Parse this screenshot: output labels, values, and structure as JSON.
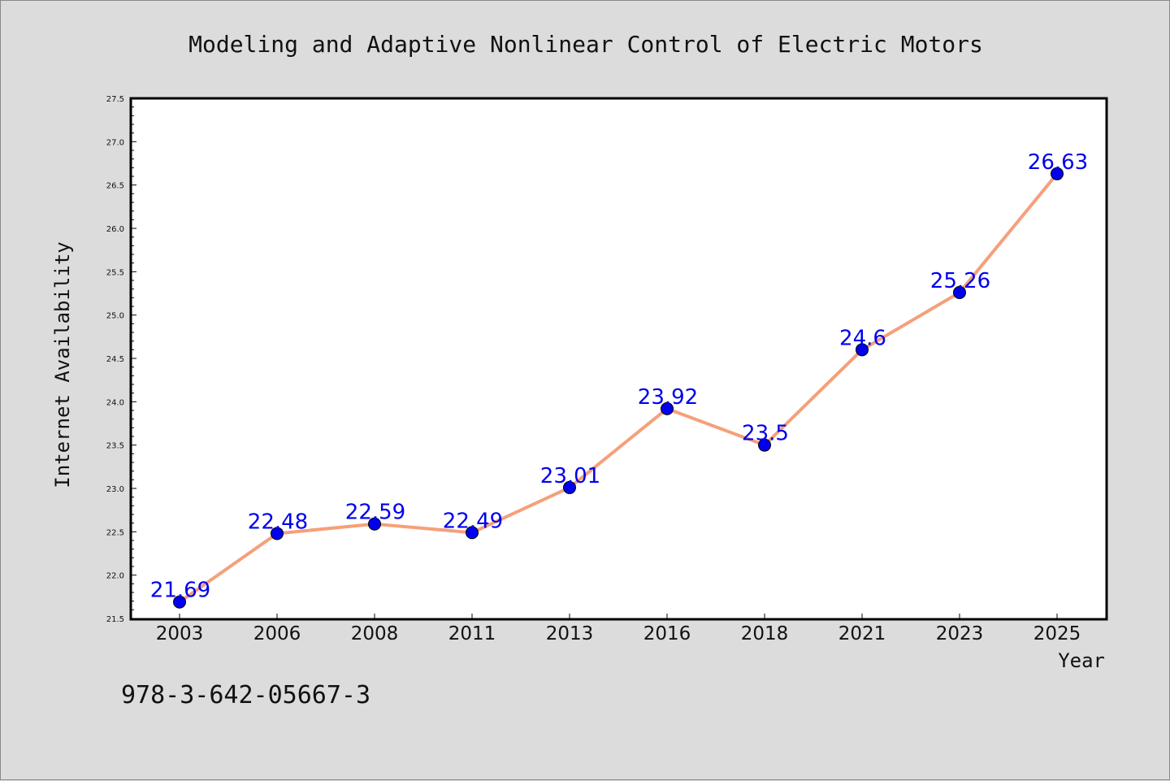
{
  "chart_data": {
    "type": "line",
    "title": "Modeling and Adaptive Nonlinear Control of Electric Motors",
    "xlabel": "Year",
    "ylabel": "Internet Availability",
    "categories": [
      "2003",
      "2006",
      "2008",
      "2011",
      "2013",
      "2016",
      "2018",
      "2021",
      "2023",
      "2025"
    ],
    "series": [
      {
        "values": [
          21.69,
          22.48,
          22.59,
          22.49,
          23.01,
          23.92,
          23.5,
          24.6,
          25.26,
          26.63
        ],
        "data_labels": [
          "21.69",
          "22.48",
          "22.59",
          "22.49",
          "23.01",
          "23.92",
          "23.5",
          "24.6",
          "25.26",
          "26.63"
        ]
      }
    ],
    "ylim": [
      21.5,
      27.5
    ],
    "yticks": [
      "21.5",
      "22.0",
      "22.5",
      "23.0",
      "23.5",
      "24.0",
      "24.5",
      "25.0",
      "25.5",
      "26.0",
      "26.5",
      "27.0",
      "27.5"
    ],
    "grid": false,
    "legend": "none",
    "colors": {
      "line": "#f5a07a",
      "marker": "#0000ee",
      "data_label": "#0000ee",
      "background": "#dcdcdc",
      "plot_area": "#ffffff"
    }
  },
  "footnote": "978-3-642-05667-3"
}
